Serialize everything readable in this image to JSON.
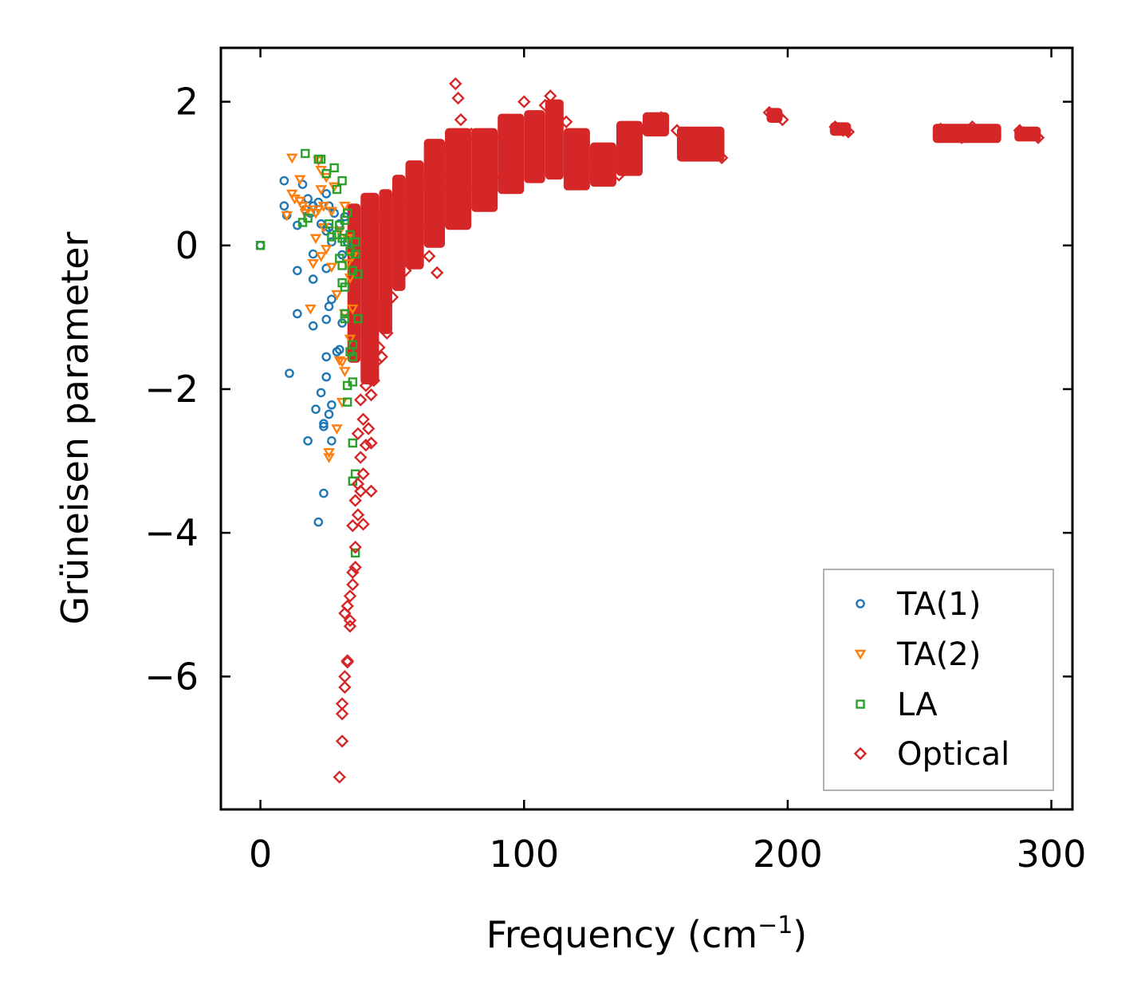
{
  "chart_data": {
    "type": "scatter",
    "xlabel": "Frequency (cm",
    "xlabel_sup": "−1",
    "xlabel_close": ")",
    "ylabel": "Grüneisen parameter",
    "xlim": [
      -15,
      308
    ],
    "ylim": [
      -7.85,
      2.75
    ],
    "xticks": [
      {
        "value": 0,
        "label": "0"
      },
      {
        "value": 100,
        "label": "100"
      },
      {
        "value": 200,
        "label": "200"
      },
      {
        "value": 300,
        "label": "300"
      }
    ],
    "yticks": [
      {
        "value": 2,
        "label": "2"
      },
      {
        "value": 0,
        "label": "0"
      },
      {
        "value": -2,
        "label": "−2"
      },
      {
        "value": -4,
        "label": "−4"
      },
      {
        "value": -6,
        "label": "−6"
      }
    ],
    "legend_position": "lower-right",
    "series": [
      {
        "name": "TA(1)",
        "marker": "circle",
        "color": "#1f77b4",
        "points": [
          [
            0,
            0
          ],
          [
            9,
            0.9
          ],
          [
            9,
            0.55
          ],
          [
            10,
            0.42
          ],
          [
            11,
            -1.78
          ],
          [
            14,
            0.28
          ],
          [
            14,
            -0.35
          ],
          [
            14,
            -0.95
          ],
          [
            16,
            0.85
          ],
          [
            17,
            0.5
          ],
          [
            18,
            0.65
          ],
          [
            18,
            -2.72
          ],
          [
            19,
            0.45
          ],
          [
            20,
            0.55
          ],
          [
            20,
            -0.12
          ],
          [
            20,
            -0.47
          ],
          [
            20,
            -1.12
          ],
          [
            21,
            -2.28
          ],
          [
            22,
            0.6
          ],
          [
            22,
            -3.85
          ],
          [
            23,
            0.3
          ],
          [
            23,
            -2.05
          ],
          [
            24,
            -2.52
          ],
          [
            24,
            -3.45
          ],
          [
            24,
            -2.48
          ],
          [
            25,
            0.72
          ],
          [
            25,
            0.2
          ],
          [
            25,
            -0.32
          ],
          [
            25,
            -1.03
          ],
          [
            25,
            -1.83
          ],
          [
            25,
            -1.55
          ],
          [
            26,
            0.55
          ],
          [
            26,
            0.25
          ],
          [
            26,
            -0.85
          ],
          [
            26,
            -2.35
          ],
          [
            27,
            0.05
          ],
          [
            27,
            -0.75
          ],
          [
            27,
            -2.22
          ],
          [
            27,
            -2.72
          ],
          [
            28,
            0.45
          ],
          [
            29,
            -1.48
          ],
          [
            30,
            0.3
          ],
          [
            30,
            -1.45
          ],
          [
            31,
            -0.13
          ],
          [
            31,
            -1.08
          ],
          [
            32,
            0.4
          ],
          [
            33,
            0.05
          ]
        ]
      },
      {
        "name": "TA(2)",
        "marker": "triangle-down",
        "color": "#ff7f0e",
        "points": [
          [
            10,
            0.42
          ],
          [
            12,
            1.22
          ],
          [
            12,
            0.72
          ],
          [
            13,
            0.65
          ],
          [
            15,
            0.92
          ],
          [
            15,
            0.62
          ],
          [
            16,
            0.55
          ],
          [
            17,
            0.45
          ],
          [
            18,
            0.5
          ],
          [
            19,
            -0.88
          ],
          [
            20,
            -0.25
          ],
          [
            21,
            0.45
          ],
          [
            21,
            0.1
          ],
          [
            22,
            1.18
          ],
          [
            22,
            0.5
          ],
          [
            23,
            1.05
          ],
          [
            23,
            0.78
          ],
          [
            23,
            -0.15
          ],
          [
            24,
            0.55
          ],
          [
            24,
            0.25
          ],
          [
            25,
            0.95
          ],
          [
            25,
            -0.05
          ],
          [
            26,
            -2.95
          ],
          [
            26,
            -2.88
          ],
          [
            27,
            -0.3
          ],
          [
            27,
            0.48
          ],
          [
            28,
            0.82
          ],
          [
            29,
            -0.68
          ],
          [
            29,
            -2.55
          ],
          [
            30,
            0.2
          ],
          [
            30,
            -1.6
          ],
          [
            31,
            -2.18
          ],
          [
            31,
            -1.62
          ],
          [
            32,
            0.55
          ],
          [
            32,
            -0.95
          ],
          [
            32,
            -1.75
          ],
          [
            33,
            -0.25
          ],
          [
            33,
            0.1
          ],
          [
            34,
            -0.45
          ],
          [
            34,
            -1.3
          ],
          [
            35,
            -0.15
          ],
          [
            35,
            -0.88
          ]
        ]
      },
      {
        "name": "LA",
        "marker": "square",
        "color": "#2ca02c",
        "points": [
          [
            0,
            0
          ],
          [
            16,
            0.32
          ],
          [
            17,
            1.28
          ],
          [
            18,
            0.38
          ],
          [
            22,
            1.2
          ],
          [
            23,
            1.2
          ],
          [
            25,
            1.0
          ],
          [
            26,
            0.3
          ],
          [
            27,
            0.12
          ],
          [
            28,
            1.08
          ],
          [
            29,
            0.78
          ],
          [
            29,
            0.15
          ],
          [
            30,
            0.28
          ],
          [
            30,
            -0.18
          ],
          [
            31,
            0.9
          ],
          [
            31,
            0.1
          ],
          [
            31,
            -0.28
          ],
          [
            31,
            -0.52
          ],
          [
            32,
            0.35
          ],
          [
            32,
            0.05
          ],
          [
            32,
            -0.58
          ],
          [
            32,
            -0.95
          ],
          [
            32,
            -1.02
          ],
          [
            33,
            -1.95
          ],
          [
            33,
            -2.18
          ],
          [
            33,
            0.45
          ],
          [
            34,
            -1.48
          ],
          [
            34,
            0.15
          ],
          [
            34,
            -0.08
          ],
          [
            35,
            -1.9
          ],
          [
            35,
            -2.75
          ],
          [
            35,
            -3.28
          ],
          [
            35,
            -1.38
          ],
          [
            35,
            -1.55
          ],
          [
            35,
            -0.35
          ],
          [
            36,
            -4.28
          ],
          [
            36,
            -3.18
          ],
          [
            36,
            0.05
          ],
          [
            36,
            -0.12
          ],
          [
            37,
            -0.4
          ],
          [
            37,
            -1.02
          ]
        ]
      },
      {
        "name": "Optical",
        "marker": "diamond",
        "color": "#d62728",
        "points": [
          [
            30,
            -7.4
          ],
          [
            31,
            -6.9
          ],
          [
            31,
            -6.52
          ],
          [
            31,
            -6.38
          ],
          [
            32,
            -6.15
          ],
          [
            32,
            -6.0
          ],
          [
            32,
            -5.12
          ],
          [
            33,
            -5.8
          ],
          [
            33,
            -5.78
          ],
          [
            33,
            -5.02
          ],
          [
            34,
            -5.3
          ],
          [
            34,
            -5.22
          ],
          [
            34,
            -4.88
          ],
          [
            35,
            -4.55
          ],
          [
            35,
            -4.72
          ],
          [
            35,
            -3.9
          ],
          [
            36,
            -4.2
          ],
          [
            36,
            -3.55
          ],
          [
            36,
            -4.48
          ],
          [
            37,
            -3.32
          ],
          [
            37,
            -3.75
          ],
          [
            37,
            -2.62
          ],
          [
            38,
            -2.95
          ],
          [
            38,
            -3.42
          ],
          [
            38,
            -2.15
          ],
          [
            39,
            -3.18
          ],
          [
            39,
            -2.42
          ],
          [
            39,
            -3.88
          ],
          [
            40,
            -2.78
          ],
          [
            40,
            -1.95
          ],
          [
            41,
            -2.55
          ],
          [
            41,
            -1.72
          ],
          [
            42,
            -3.42
          ],
          [
            42,
            -2.75
          ],
          [
            42,
            -2.08
          ],
          [
            43,
            -1.88
          ],
          [
            43,
            -0.85
          ],
          [
            44,
            -1.62
          ],
          [
            44,
            -1.15
          ],
          [
            45,
            -1.42
          ],
          [
            45,
            -0.95
          ],
          [
            46,
            -1.55
          ],
          [
            46,
            0.4
          ],
          [
            47,
            -0.88
          ],
          [
            48,
            -1.22
          ],
          [
            49,
            0.12
          ],
          [
            50,
            -0.72
          ],
          [
            52,
            -0.45
          ],
          [
            53,
            0.48
          ],
          [
            55,
            -0.35
          ],
          [
            57,
            0.6
          ],
          [
            60,
            0.25
          ],
          [
            62,
            0.85
          ],
          [
            64,
            -0.15
          ],
          [
            67,
            -0.38
          ],
          [
            70,
            0.9
          ],
          [
            72,
            1.35
          ],
          [
            74,
            2.25
          ],
          [
            75,
            2.05
          ],
          [
            76,
            1.75
          ],
          [
            78,
            0.78
          ],
          [
            80,
            1.55
          ],
          [
            84,
            1.25
          ],
          [
            88,
            0.95
          ],
          [
            92,
            1.5
          ],
          [
            96,
            1.72
          ],
          [
            100,
            2.0
          ],
          [
            104,
            1.35
          ],
          [
            108,
            1.95
          ],
          [
            110,
            2.08
          ],
          [
            112,
            1.05
          ],
          [
            116,
            1.72
          ],
          [
            120,
            1.45
          ],
          [
            124,
            1.1
          ],
          [
            128,
            1.32
          ],
          [
            132,
            1.22
          ],
          [
            136,
            0.98
          ],
          [
            140,
            1.55
          ],
          [
            144,
            1.6
          ],
          [
            148,
            1.72
          ],
          [
            152,
            1.78
          ],
          [
            158,
            1.6
          ],
          [
            163,
            1.52
          ],
          [
            168,
            1.4
          ],
          [
            172,
            1.3
          ],
          [
            175,
            1.22
          ],
          [
            193,
            1.85
          ],
          [
            196,
            1.8
          ],
          [
            198,
            1.75
          ],
          [
            218,
            1.65
          ],
          [
            221,
            1.6
          ],
          [
            223,
            1.58
          ],
          [
            258,
            1.62
          ],
          [
            262,
            1.58
          ],
          [
            266,
            1.5
          ],
          [
            270,
            1.65
          ],
          [
            274,
            1.58
          ],
          [
            278,
            1.52
          ],
          [
            288,
            1.6
          ],
          [
            292,
            1.55
          ],
          [
            295,
            1.5
          ]
        ],
        "bands": [
          {
            "x0": 33,
            "x1": 38,
            "ylo": -1.6,
            "yhi": 0.55
          },
          {
            "x0": 38,
            "x1": 45,
            "ylo": -1.9,
            "yhi": 0.7
          },
          {
            "x0": 45,
            "x1": 50,
            "ylo": -1.2,
            "yhi": 0.75
          },
          {
            "x0": 50,
            "x1": 55,
            "ylo": -0.6,
            "yhi": 0.95
          },
          {
            "x0": 55,
            "x1": 62,
            "ylo": -0.3,
            "yhi": 1.15
          },
          {
            "x0": 62,
            "x1": 70,
            "ylo": 0.0,
            "yhi": 1.45
          },
          {
            "x0": 70,
            "x1": 80,
            "ylo": 0.25,
            "yhi": 1.6
          },
          {
            "x0": 80,
            "x1": 90,
            "ylo": 0.5,
            "yhi": 1.6
          },
          {
            "x0": 90,
            "x1": 100,
            "ylo": 0.75,
            "yhi": 1.8
          },
          {
            "x0": 100,
            "x1": 108,
            "ylo": 0.9,
            "yhi": 1.85
          },
          {
            "x0": 108,
            "x1": 115,
            "ylo": 0.95,
            "yhi": 2.0
          },
          {
            "x0": 115,
            "x1": 125,
            "ylo": 0.8,
            "yhi": 1.6
          },
          {
            "x0": 125,
            "x1": 135,
            "ylo": 0.85,
            "yhi": 1.4
          },
          {
            "x0": 135,
            "x1": 145,
            "ylo": 1.0,
            "yhi": 1.7
          },
          {
            "x0": 145,
            "x1": 155,
            "ylo": 1.55,
            "yhi": 1.82
          },
          {
            "x0": 158,
            "x1": 176,
            "ylo": 1.2,
            "yhi": 1.62
          },
          {
            "x0": 192,
            "x1": 198,
            "ylo": 1.74,
            "yhi": 1.88
          },
          {
            "x0": 216,
            "x1": 224,
            "ylo": 1.56,
            "yhi": 1.68
          },
          {
            "x0": 255,
            "x1": 281,
            "ylo": 1.46,
            "yhi": 1.66
          },
          {
            "x0": 286,
            "x1": 296,
            "ylo": 1.48,
            "yhi": 1.62
          }
        ]
      }
    ]
  }
}
